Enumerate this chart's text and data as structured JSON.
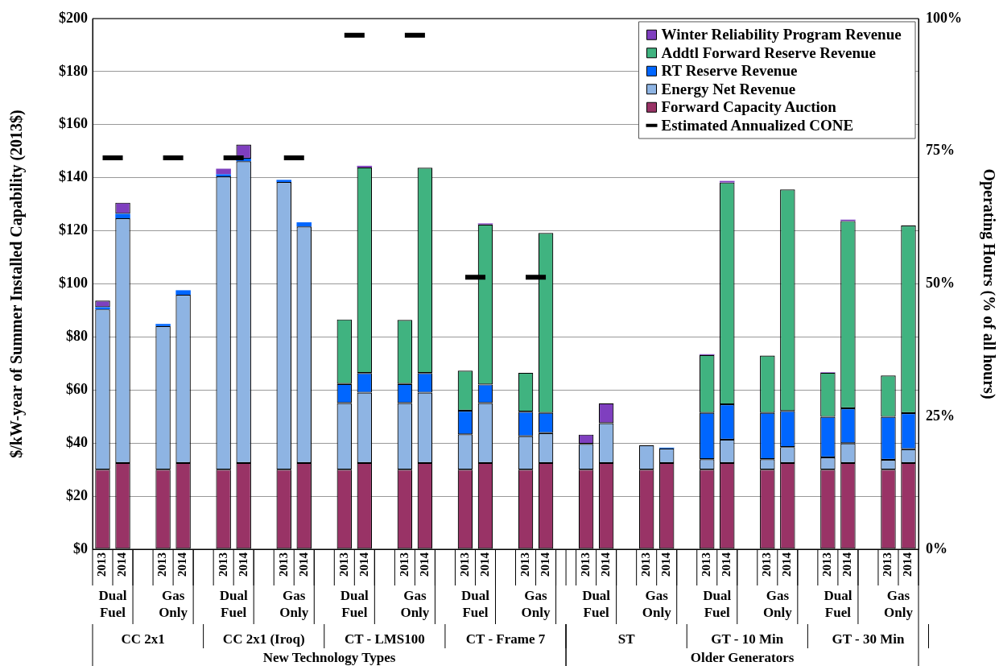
{
  "chart_data": {
    "type": "bar",
    "stacked": true,
    "ylabel": "$/kW-year of Summer Installed Capability (2013$)",
    "y2label": "Operating Hours (% of all hours)",
    "categories": [
      "2013",
      "2014",
      null,
      "2013",
      "2014",
      null,
      "2013",
      "2014",
      null,
      "2013",
      "2014",
      null,
      "2013",
      "2014",
      null,
      "2013",
      "2014",
      null,
      "2013",
      "2014",
      null,
      "2013",
      "2014",
      null,
      "2013",
      "2014",
      null,
      "2013",
      "2014",
      null,
      "2013",
      "2014",
      null,
      "2013",
      "2014",
      null,
      "2013",
      "2014",
      null,
      "2013",
      "2014"
    ],
    "series": [
      {
        "name": "Forward Capacity Auction",
        "color": "#993366",
        "values": [
          30,
          32.5,
          null,
          30,
          32.5,
          null,
          30,
          32.5,
          null,
          30,
          32.5,
          null,
          30,
          32.5,
          null,
          30,
          32.5,
          null,
          30,
          32.5,
          null,
          30,
          32.5,
          null,
          30,
          32.5,
          null,
          30,
          32.5,
          null,
          30,
          32.5,
          null,
          30,
          32.5,
          null,
          30,
          32.5,
          null,
          30,
          32.5
        ]
      },
      {
        "name": "Energy Net Revenue",
        "color": "#8eb4e3",
        "values": [
          60.4,
          92.2,
          null,
          54.1,
          63.4,
          null,
          110.5,
          113.7,
          null,
          108.4,
          89.1,
          null,
          25.1,
          26.5,
          null,
          25.1,
          26.5,
          null,
          13.3,
          22.6,
          null,
          12.6,
          11.3,
          null,
          9.7,
          15,
          null,
          9.2,
          5.5,
          null,
          3.9,
          8.8,
          null,
          3.9,
          6,
          null,
          4.6,
          7.4,
          null,
          3.7,
          5.2
        ]
      },
      {
        "name": "RT Reserve Revenue",
        "color": "#0066ff",
        "values": [
          0.8,
          1.7,
          null,
          0.8,
          1.7,
          null,
          0.8,
          1,
          null,
          0.8,
          1.6,
          null,
          7.2,
          7.4,
          null,
          7.2,
          7.4,
          null,
          8.9,
          7,
          null,
          9.2,
          7.6,
          null,
          null,
          null,
          null,
          null,
          0.3,
          null,
          17.5,
          13.3,
          null,
          17.5,
          13.6,
          null,
          15.3,
          13.2,
          null,
          16.2,
          13.6
        ]
      },
      {
        "name": "Addtl Forward Reserve Revenue",
        "color": "#40b380",
        "values": [
          null,
          null,
          null,
          null,
          null,
          null,
          null,
          null,
          null,
          null,
          null,
          null,
          24.3,
          77.5,
          null,
          24.1,
          77.4,
          null,
          15.1,
          60.3,
          null,
          14.7,
          67.8,
          null,
          null,
          null,
          null,
          null,
          null,
          null,
          21.8,
          83.6,
          null,
          21.6,
          83.5,
          null,
          16.6,
          70.6,
          null,
          15.6,
          70.7
        ]
      },
      {
        "name": "Winter Reliability Program Revenue",
        "color": "#7f3fbf",
        "values": [
          2.5,
          4.2,
          null,
          null,
          null,
          null,
          2.1,
          5.3,
          null,
          null,
          null,
          null,
          null,
          0.6,
          null,
          null,
          null,
          null,
          null,
          0.4,
          null,
          null,
          null,
          null,
          3.5,
          7.5,
          null,
          null,
          null,
          null,
          0.3,
          0.6,
          null,
          null,
          null,
          null,
          0.2,
          0.5,
          null,
          null,
          null
        ]
      },
      {
        "name": "Estimated Annualized CONE",
        "type": "line",
        "color": "#000000",
        "values": [
          147.5,
          147.5,
          null,
          147.5,
          147.5,
          null,
          147.5,
          147.5,
          null,
          147.5,
          147.5,
          null,
          193.7,
          193.7,
          null,
          193.7,
          193.7,
          null,
          102.5,
          102.5,
          null,
          102.5,
          102.5,
          null,
          null,
          null,
          null,
          null,
          null,
          null,
          null,
          null,
          null,
          null,
          null,
          null,
          null,
          null,
          null,
          null,
          null
        ]
      }
    ],
    "ylim": [
      0,
      200
    ],
    "yticks": [
      {
        "value": 0,
        "label": "$0"
      },
      {
        "value": 20,
        "label": "$20"
      },
      {
        "value": 40,
        "label": "$40"
      },
      {
        "value": 60,
        "label": "$60"
      },
      {
        "value": 80,
        "label": "$80"
      },
      {
        "value": 100,
        "label": "$100"
      },
      {
        "value": 120,
        "label": "$120"
      },
      {
        "value": 140,
        "label": "$140"
      },
      {
        "value": 160,
        "label": "$160"
      },
      {
        "value": 180,
        "label": "$180"
      },
      {
        "value": 200,
        "label": "$200"
      }
    ],
    "y2lim": [
      0,
      100
    ],
    "y2ticks": [
      {
        "value": 0,
        "label": "0%"
      },
      {
        "value": 25,
        "label": "25%"
      },
      {
        "value": 50,
        "label": "50%"
      },
      {
        "value": 75,
        "label": "75%"
      },
      {
        "value": 100,
        "label": "100%"
      }
    ],
    "grid": "y",
    "legend": "top right",
    "line_style": "solid",
    "annotations": [
      "Dual Fuel",
      "Gas Only",
      "Dual Fuel",
      "Gas Only",
      "Dual Fuel",
      "Gas Only",
      "Dual Fuel",
      "Gas Only",
      "Dual Fuel",
      "Gas Only",
      "Dual Fuel",
      "Gas Only",
      "Dual Fuel",
      "Gas Only",
      "CC 2x1",
      "CC 2x1 (Iroq)",
      "CT - LMS100",
      "CT - Frame 7",
      "ST",
      "GT - 10 Min",
      "GT - 30 Min",
      "New Technology Types",
      "Older Generators"
    ]
  }
}
